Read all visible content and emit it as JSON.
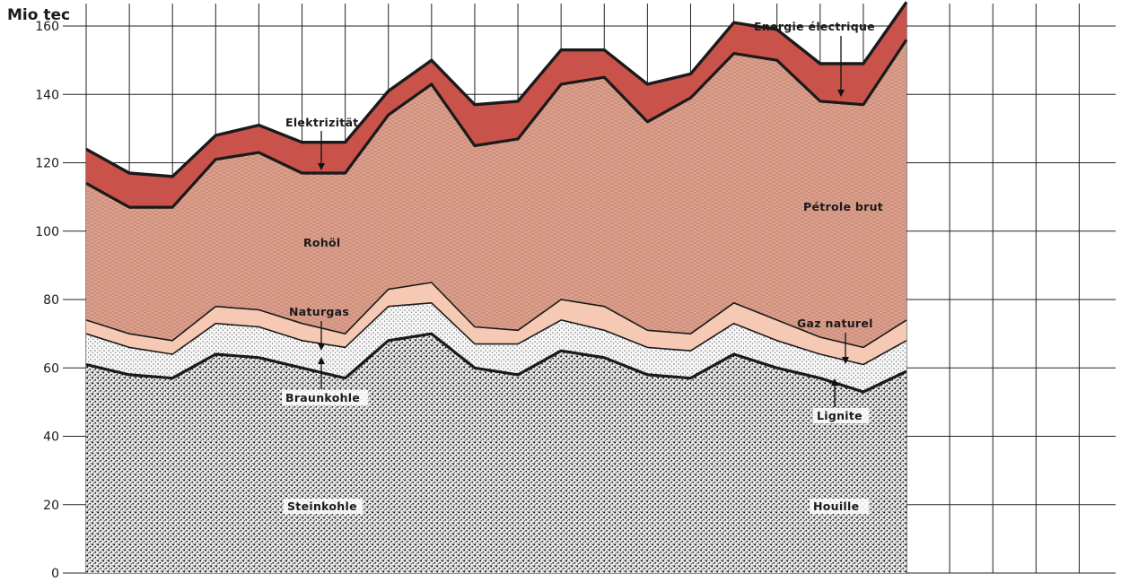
{
  "chart_data": {
    "type": "area",
    "stacked": true,
    "unit_label": "Mio tec",
    "x": [
      1,
      2,
      3,
      4,
      5,
      6,
      7,
      8,
      9,
      10,
      11,
      12,
      13,
      14,
      15,
      16,
      17,
      18,
      19,
      20
    ],
    "ylim": [
      0,
      165
    ],
    "yticks": [
      0,
      20,
      40,
      60,
      80,
      100,
      120,
      140,
      160
    ],
    "grid": true,
    "series": [
      {
        "name": "Steinkohle / Houille",
        "values": [
          61,
          58,
          57,
          64,
          63,
          60,
          57,
          68,
          70,
          60,
          58,
          65,
          63,
          58,
          57,
          64,
          60,
          57,
          53,
          59
        ]
      },
      {
        "name": "Braunkohle / Lignite",
        "values": [
          9,
          8,
          7,
          9,
          9,
          8,
          9,
          10,
          9,
          7,
          9,
          9,
          8,
          8,
          8,
          9,
          8,
          7,
          8,
          9
        ]
      },
      {
        "name": "Naturgas / Gaz naturel",
        "values": [
          4,
          4,
          4,
          5,
          5,
          5,
          4,
          5,
          6,
          5,
          4,
          6,
          7,
          5,
          5,
          6,
          6,
          5,
          5,
          6
        ]
      },
      {
        "name": "Rohöl / Pétrole brut",
        "values": [
          40,
          37,
          39,
          43,
          46,
          44,
          47,
          51,
          58,
          53,
          56,
          63,
          67,
          61,
          69,
          73,
          76,
          69,
          71,
          82
        ]
      },
      {
        "name": "Elektrizität / Energie électrique",
        "values": [
          10,
          10,
          9,
          7,
          8,
          9,
          9,
          7,
          7,
          12,
          11,
          10,
          8,
          11,
          7,
          9,
          9,
          11,
          12,
          11
        ]
      }
    ],
    "labels": {
      "steinkohle": "Steinkohle",
      "houille": "Houille",
      "braunkohle": "Braunkohle",
      "lignite": "Lignite",
      "naturgas": "Naturgas",
      "gaz_naturel": "Gaz naturel",
      "rohoel": "Rohöl",
      "petrole_brut": "Pétrole brut",
      "elektrizitaet": "Elektrizität",
      "energie_electrique": "Energie électrique"
    },
    "colors": {
      "steinkohle": "#8a8a8a",
      "braunkohle": "#e6e6e6",
      "naturgas": "#f6c9b4",
      "rohoel": "#dca08c",
      "elektrizitaet": "#c9534a",
      "line": "#1a1a1a",
      "grid": "#222222"
    }
  }
}
